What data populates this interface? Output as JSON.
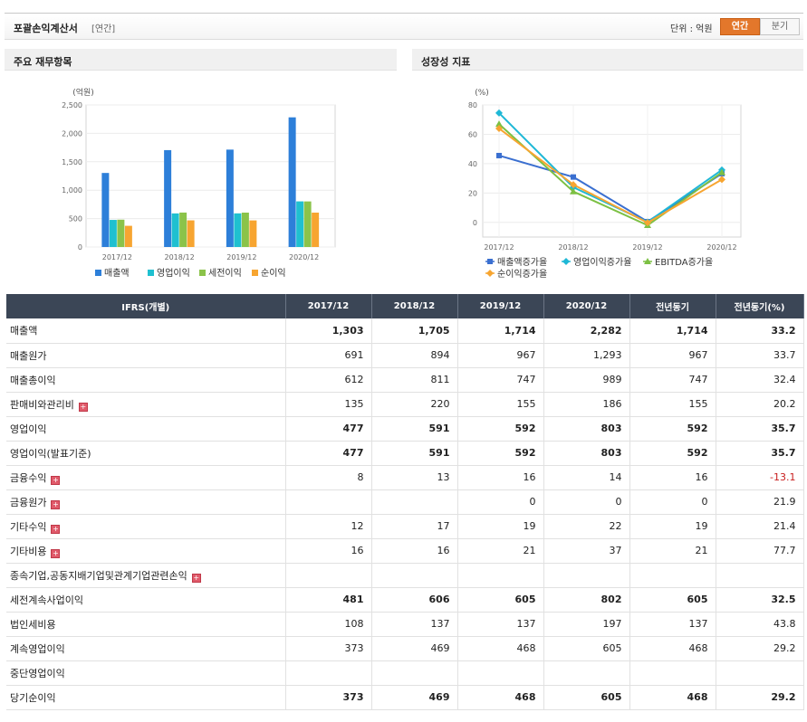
{
  "header": {
    "title": "포괄손익계산서",
    "period": "[연간]",
    "unit_label": "단위 : 억원",
    "tab_annual": "연간",
    "tab_quarter": "분기"
  },
  "panels": {
    "left_title": "주요 재무항목",
    "right_title": "성장성 지표"
  },
  "chart_data": [
    {
      "type": "bar",
      "ylabel": "(억원)",
      "ylim": [
        0,
        2500
      ],
      "yticks": [
        "0",
        "500",
        "1,000",
        "1,500",
        "2,000",
        "2,500"
      ],
      "categories": [
        "2017/12",
        "2018/12",
        "2019/12",
        "2020/12"
      ],
      "series": [
        {
          "name": "매출액",
          "color": "#2d7fd9",
          "values": [
            1303,
            1705,
            1714,
            2282
          ]
        },
        {
          "name": "영업이익",
          "color": "#1fc0d0",
          "values": [
            477,
            591,
            592,
            803
          ]
        },
        {
          "name": "세전이익",
          "color": "#8bc34a",
          "values": [
            481,
            606,
            605,
            802
          ]
        },
        {
          "name": "순이익",
          "color": "#f7a531",
          "values": [
            373,
            469,
            468,
            605
          ]
        }
      ],
      "legend": "bottom",
      "grid": true
    },
    {
      "type": "line",
      "ylabel": "(%)",
      "ylim": [
        -10,
        80
      ],
      "yticks": [
        "0",
        "20",
        "40",
        "60",
        "80"
      ],
      "categories": [
        "2017/12",
        "2018/12",
        "2019/12",
        "2020/12"
      ],
      "series": [
        {
          "name": "매출액증가율",
          "color": "#3a6fd0",
          "marker": "square",
          "values": [
            45.5,
            30.9,
            0.5,
            33.2
          ]
        },
        {
          "name": "영업이익증가율",
          "color": "#1fb8d6",
          "marker": "diamond",
          "values": [
            74.5,
            23.9,
            0.2,
            35.7
          ]
        },
        {
          "name": "EBITDA증가율",
          "color": "#7cc043",
          "marker": "triangle",
          "values": [
            67,
            21,
            -2,
            34
          ]
        },
        {
          "name": "순이익증가율",
          "color": "#f7a531",
          "marker": "diamond",
          "values": [
            64,
            25.7,
            -0.2,
            29.2
          ]
        }
      ],
      "legend": "bottom",
      "grid": true
    }
  ],
  "table": {
    "columns": [
      "IFRS(개별)",
      "2017/12",
      "2018/12",
      "2019/12",
      "2020/12",
      "전년동기",
      "전년동기(%)"
    ],
    "rows": [
      {
        "label": "매출액",
        "bold": true,
        "expand": false,
        "values": [
          "1,303",
          "1,705",
          "1,714",
          "2,282",
          "1,714",
          "33.2"
        ]
      },
      {
        "label": "매출원가",
        "bold": false,
        "expand": false,
        "values": [
          "691",
          "894",
          "967",
          "1,293",
          "967",
          "33.7"
        ]
      },
      {
        "label": "매출총이익",
        "bold": false,
        "expand": false,
        "values": [
          "612",
          "811",
          "747",
          "989",
          "747",
          "32.4"
        ]
      },
      {
        "label": "판매비와관리비",
        "bold": false,
        "expand": true,
        "values": [
          "135",
          "220",
          "155",
          "186",
          "155",
          "20.2"
        ]
      },
      {
        "label": "영업이익",
        "bold": true,
        "expand": false,
        "values": [
          "477",
          "591",
          "592",
          "803",
          "592",
          "35.7"
        ]
      },
      {
        "label": "영업이익(발표기준)",
        "bold": true,
        "expand": false,
        "values": [
          "477",
          "591",
          "592",
          "803",
          "592",
          "35.7"
        ]
      },
      {
        "label": "금융수익",
        "bold": false,
        "expand": true,
        "values": [
          "8",
          "13",
          "16",
          "14",
          "16",
          "-13.1"
        ]
      },
      {
        "label": "금융원가",
        "bold": false,
        "expand": true,
        "values": [
          "",
          "",
          "0",
          "0",
          "0",
          "21.9"
        ]
      },
      {
        "label": "기타수익",
        "bold": false,
        "expand": true,
        "values": [
          "12",
          "17",
          "19",
          "22",
          "19",
          "21.4"
        ]
      },
      {
        "label": "기타비용",
        "bold": false,
        "expand": true,
        "values": [
          "16",
          "16",
          "21",
          "37",
          "21",
          "77.7"
        ]
      },
      {
        "label": "종속기업,공동지배기업및관계기업관련손익",
        "bold": false,
        "expand": true,
        "values": [
          "",
          "",
          "",
          "",
          "",
          ""
        ]
      },
      {
        "label": "세전계속사업이익",
        "bold": true,
        "expand": false,
        "values": [
          "481",
          "606",
          "605",
          "802",
          "605",
          "32.5"
        ]
      },
      {
        "label": "법인세비용",
        "bold": false,
        "expand": false,
        "values": [
          "108",
          "137",
          "137",
          "197",
          "137",
          "43.8"
        ]
      },
      {
        "label": "계속영업이익",
        "bold": false,
        "expand": false,
        "values": [
          "373",
          "469",
          "468",
          "605",
          "468",
          "29.2"
        ]
      },
      {
        "label": "중단영업이익",
        "bold": false,
        "expand": false,
        "values": [
          "",
          "",
          "",
          "",
          "",
          ""
        ]
      },
      {
        "label": "당기순이익",
        "bold": true,
        "expand": false,
        "values": [
          "373",
          "469",
          "468",
          "605",
          "468",
          "29.2"
        ]
      }
    ]
  }
}
